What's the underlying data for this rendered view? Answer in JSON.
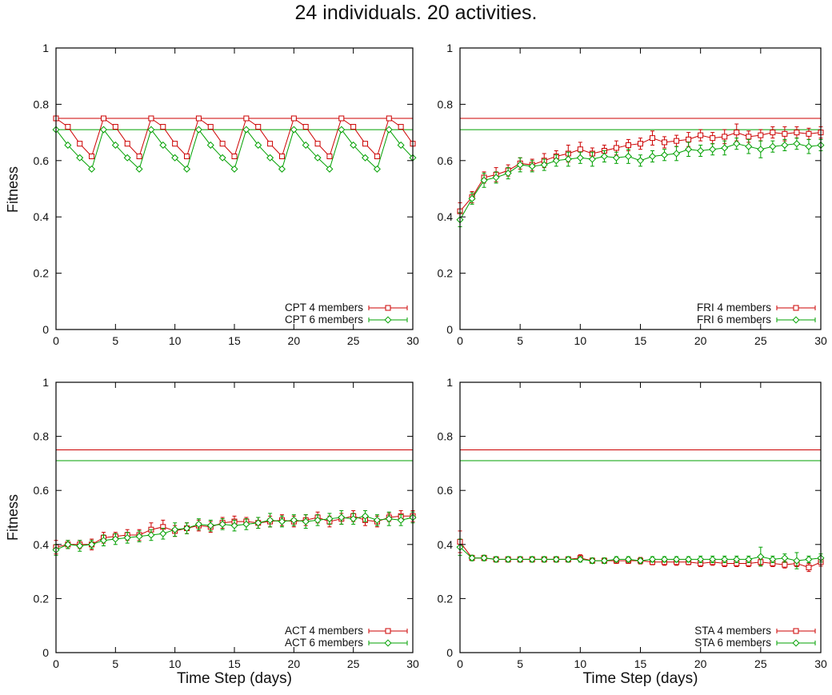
{
  "page": {
    "title": "24 individuals. 20 activities."
  },
  "chart_data": {
    "type": "line",
    "layout": "2x2-grid",
    "title": "24 individuals. 20 activities.",
    "xlabel": "Time Step (days)",
    "ylabel": "Fitness",
    "xlim": [
      0,
      30
    ],
    "ylim": [
      0,
      1
    ],
    "xtick_values": [
      0,
      5,
      10,
      15,
      20,
      25,
      30
    ],
    "xtick_labels": [
      "0",
      "5",
      "10",
      "15",
      "20",
      "25",
      "30"
    ],
    "ytick_values": [
      0,
      0.2,
      0.4,
      0.6,
      0.8,
      1
    ],
    "ytick_labels": [
      "0",
      "0.2",
      "0.4",
      "0.6",
      "0.8",
      "1"
    ],
    "grid": false,
    "legend_position": "bottom-right-inside",
    "colors": {
      "red": "#cc0000",
      "green": "#00a000"
    },
    "reference_lines": [
      {
        "value": 0.75,
        "color": "#cc0000"
      },
      {
        "value": 0.71,
        "color": "#00a000"
      }
    ],
    "x": [
      0,
      1,
      2,
      3,
      4,
      5,
      6,
      7,
      8,
      9,
      10,
      11,
      12,
      13,
      14,
      15,
      16,
      17,
      18,
      19,
      20,
      21,
      22,
      23,
      24,
      25,
      26,
      27,
      28,
      29,
      30
    ],
    "panels": [
      {
        "name": "CPT",
        "series": [
          {
            "label": "CPT 4 members",
            "color": "#cc0000",
            "marker": "square",
            "values": [
              0.75,
              0.72,
              0.66,
              0.615,
              0.75,
              0.72,
              0.66,
              0.615,
              0.75,
              0.72,
              0.66,
              0.615,
              0.75,
              0.72,
              0.66,
              0.615,
              0.75,
              0.72,
              0.66,
              0.615,
              0.75,
              0.72,
              0.66,
              0.615,
              0.75,
              0.72,
              0.66,
              0.615,
              0.75,
              0.72,
              0.66
            ],
            "errors": null
          },
          {
            "label": "CPT 6 members",
            "color": "#00a000",
            "marker": "diamond",
            "values": [
              0.71,
              0.655,
              0.61,
              0.57,
              0.71,
              0.655,
              0.61,
              0.57,
              0.71,
              0.655,
              0.61,
              0.57,
              0.71,
              0.655,
              0.61,
              0.57,
              0.71,
              0.655,
              0.61,
              0.57,
              0.71,
              0.655,
              0.61,
              0.57,
              0.71,
              0.655,
              0.61,
              0.57,
              0.71,
              0.655,
              0.61
            ],
            "errors": null
          }
        ]
      },
      {
        "name": "FRI",
        "series": [
          {
            "label": "FRI 4 members",
            "color": "#cc0000",
            "marker": "square",
            "values": [
              0.42,
              0.47,
              0.54,
              0.55,
              0.565,
              0.59,
              0.585,
              0.6,
              0.615,
              0.625,
              0.64,
              0.625,
              0.635,
              0.645,
              0.655,
              0.66,
              0.68,
              0.665,
              0.67,
              0.675,
              0.69,
              0.68,
              0.685,
              0.7,
              0.685,
              0.69,
              0.7,
              0.695,
              0.7,
              0.695,
              0.7
            ],
            "errors": [
              0.03,
              0.02,
              0.02,
              0.025,
              0.02,
              0.02,
              0.02,
              0.025,
              0.02,
              0.03,
              0.025,
              0.02,
              0.02,
              0.025,
              0.02,
              0.02,
              0.025,
              0.02,
              0.02,
              0.025,
              0.02,
              0.02,
              0.025,
              0.03,
              0.02,
              0.02,
              0.02,
              0.025,
              0.02,
              0.02,
              0.02
            ]
          },
          {
            "label": "FRI 6 members",
            "color": "#00a000",
            "marker": "diamond",
            "values": [
              0.39,
              0.465,
              0.53,
              0.54,
              0.555,
              0.585,
              0.58,
              0.585,
              0.6,
              0.605,
              0.61,
              0.605,
              0.615,
              0.61,
              0.615,
              0.6,
              0.615,
              0.62,
              0.625,
              0.64,
              0.635,
              0.64,
              0.645,
              0.66,
              0.65,
              0.64,
              0.65,
              0.655,
              0.66,
              0.65,
              0.655
            ],
            "errors": [
              0.025,
              0.02,
              0.025,
              0.02,
              0.02,
              0.025,
              0.02,
              0.02,
              0.02,
              0.025,
              0.02,
              0.025,
              0.02,
              0.02,
              0.025,
              0.02,
              0.02,
              0.02,
              0.025,
              0.025,
              0.02,
              0.02,
              0.025,
              0.02,
              0.025,
              0.03,
              0.02,
              0.02,
              0.02,
              0.025,
              0.02
            ]
          }
        ]
      },
      {
        "name": "ACT",
        "series": [
          {
            "label": "ACT 4 members",
            "color": "#cc0000",
            "marker": "square",
            "values": [
              0.39,
              0.4,
              0.4,
              0.4,
              0.425,
              0.43,
              0.435,
              0.435,
              0.455,
              0.465,
              0.45,
              0.46,
              0.47,
              0.465,
              0.48,
              0.485,
              0.485,
              0.48,
              0.485,
              0.49,
              0.485,
              0.49,
              0.5,
              0.485,
              0.495,
              0.505,
              0.49,
              0.485,
              0.5,
              0.505,
              0.505
            ],
            "errors": [
              0.025,
              0.015,
              0.015,
              0.02,
              0.02,
              0.015,
              0.02,
              0.02,
              0.025,
              0.025,
              0.02,
              0.02,
              0.02,
              0.02,
              0.02,
              0.02,
              0.015,
              0.02,
              0.02,
              0.02,
              0.02,
              0.02,
              0.02,
              0.02,
              0.02,
              0.02,
              0.02,
              0.02,
              0.015,
              0.02,
              0.02
            ]
          },
          {
            "label": "ACT 6 members",
            "color": "#00a000",
            "marker": "diamond",
            "values": [
              0.38,
              0.4,
              0.395,
              0.4,
              0.415,
              0.42,
              0.425,
              0.43,
              0.435,
              0.44,
              0.455,
              0.46,
              0.475,
              0.47,
              0.475,
              0.47,
              0.475,
              0.48,
              0.49,
              0.485,
              0.49,
              0.485,
              0.49,
              0.495,
              0.5,
              0.495,
              0.505,
              0.49,
              0.495,
              0.49,
              0.5
            ],
            "errors": [
              0.02,
              0.015,
              0.02,
              0.015,
              0.02,
              0.02,
              0.02,
              0.02,
              0.02,
              0.02,
              0.025,
              0.02,
              0.02,
              0.02,
              0.02,
              0.02,
              0.02,
              0.02,
              0.025,
              0.02,
              0.02,
              0.025,
              0.02,
              0.02,
              0.025,
              0.02,
              0.02,
              0.02,
              0.025,
              0.02,
              0.02
            ]
          }
        ]
      },
      {
        "name": "STA",
        "series": [
          {
            "label": "STA 4 members",
            "color": "#cc0000",
            "marker": "square",
            "values": [
              0.41,
              0.35,
              0.35,
              0.345,
              0.345,
              0.345,
              0.345,
              0.345,
              0.345,
              0.345,
              0.35,
              0.34,
              0.34,
              0.34,
              0.34,
              0.34,
              0.335,
              0.335,
              0.335,
              0.335,
              0.33,
              0.335,
              0.33,
              0.33,
              0.33,
              0.335,
              0.33,
              0.325,
              0.33,
              0.315,
              0.335
            ],
            "errors": [
              0.04,
              0.01,
              0.01,
              0.01,
              0.01,
              0.01,
              0.01,
              0.01,
              0.01,
              0.01,
              0.012,
              0.01,
              0.01,
              0.01,
              0.01,
              0.012,
              0.01,
              0.012,
              0.012,
              0.01,
              0.012,
              0.012,
              0.012,
              0.012,
              0.012,
              0.012,
              0.012,
              0.012,
              0.012,
              0.015,
              0.015
            ]
          },
          {
            "label": "STA 6 members",
            "color": "#00a000",
            "marker": "diamond",
            "values": [
              0.39,
              0.35,
              0.35,
              0.345,
              0.345,
              0.345,
              0.345,
              0.345,
              0.345,
              0.345,
              0.345,
              0.34,
              0.34,
              0.345,
              0.345,
              0.34,
              0.345,
              0.345,
              0.345,
              0.345,
              0.345,
              0.345,
              0.345,
              0.345,
              0.345,
              0.355,
              0.345,
              0.35,
              0.34,
              0.345,
              0.35
            ],
            "errors": [
              0.03,
              0.01,
              0.01,
              0.01,
              0.01,
              0.01,
              0.01,
              0.01,
              0.01,
              0.01,
              0.01,
              0.01,
              0.01,
              0.01,
              0.01,
              0.01,
              0.01,
              0.01,
              0.01,
              0.01,
              0.012,
              0.012,
              0.012,
              0.012,
              0.012,
              0.035,
              0.012,
              0.015,
              0.03,
              0.012,
              0.015
            ]
          }
        ]
      }
    ]
  }
}
